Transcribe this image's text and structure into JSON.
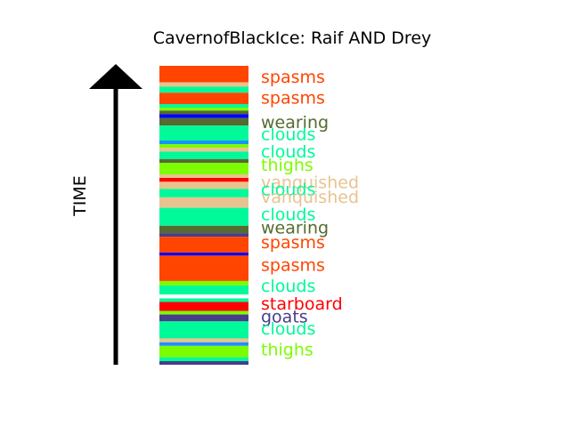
{
  "chart_data": {
    "type": "bar",
    "orientation": "stacked-timeline",
    "title": "CavernofBlackIce: Raif AND Drey",
    "ylabel": "TIME",
    "ylim": [
      0,
      1
    ],
    "grid": false,
    "stripes": [
      {
        "label": "spasms",
        "start": 0.945,
        "end": 1.0,
        "color": "#ff4500"
      },
      {
        "label": "",
        "start": 0.93,
        "end": 0.945,
        "color": "#e9c38f"
      },
      {
        "label": "",
        "start": 0.91,
        "end": 0.93,
        "color": "#00fa9a"
      },
      {
        "label": "spasms",
        "start": 0.872,
        "end": 0.91,
        "color": "#ff4500"
      },
      {
        "label": "",
        "start": 0.86,
        "end": 0.872,
        "color": "#00fa9a"
      },
      {
        "label": "",
        "start": 0.85,
        "end": 0.86,
        "color": "#7cfc00"
      },
      {
        "label": "",
        "start": 0.838,
        "end": 0.85,
        "color": "#556b2f"
      },
      {
        "label": "wearing",
        "start": 0.825,
        "end": 0.838,
        "color": "#0000ff"
      },
      {
        "label": "",
        "start": 0.8,
        "end": 0.825,
        "color": "#556b2f"
      },
      {
        "label": "clouds",
        "start": 0.75,
        "end": 0.8,
        "color": "#00fa9a"
      },
      {
        "label": "",
        "start": 0.738,
        "end": 0.75,
        "color": "#1e90ff"
      },
      {
        "label": "",
        "start": 0.726,
        "end": 0.738,
        "color": "#7cfc00"
      },
      {
        "label": "",
        "start": 0.713,
        "end": 0.726,
        "color": "#e9c38f"
      },
      {
        "label": "clouds",
        "start": 0.688,
        "end": 0.713,
        "color": "#00fa9a"
      },
      {
        "label": "",
        "start": 0.675,
        "end": 0.688,
        "color": "#556b2f"
      },
      {
        "label": "",
        "start": 0.65,
        "end": 0.675,
        "color": "#7cfc00"
      },
      {
        "label": "thighs",
        "start": 0.637,
        "end": 0.65,
        "color": "#7cfc00"
      },
      {
        "label": "",
        "start": 0.625,
        "end": 0.637,
        "color": "#e9c38f"
      },
      {
        "label": "vanquished",
        "start": 0.612,
        "end": 0.625,
        "color": "#ff0000"
      },
      {
        "label": "",
        "start": 0.588,
        "end": 0.612,
        "color": "#e9c38f"
      },
      {
        "label": "clouds",
        "start": 0.56,
        "end": 0.588,
        "color": "#00fa9a"
      },
      {
        "label": "vanquished",
        "start": 0.525,
        "end": 0.56,
        "color": "#e9c38f"
      },
      {
        "label": "clouds",
        "start": 0.465,
        "end": 0.525,
        "color": "#00fa9a"
      },
      {
        "label": "wearing",
        "start": 0.44,
        "end": 0.465,
        "color": "#556b2f"
      },
      {
        "label": "",
        "start": 0.428,
        "end": 0.44,
        "color": "#483d8b"
      },
      {
        "label": "spasms",
        "start": 0.375,
        "end": 0.428,
        "color": "#ff4500"
      },
      {
        "label": "",
        "start": 0.365,
        "end": 0.375,
        "color": "#0000ff"
      },
      {
        "label": "spasms",
        "start": 0.28,
        "end": 0.365,
        "color": "#ff4500"
      },
      {
        "label": "",
        "start": 0.265,
        "end": 0.28,
        "color": "#7cfc00"
      },
      {
        "label": "clouds",
        "start": 0.235,
        "end": 0.265,
        "color": "#00fa9a"
      },
      {
        "label": "",
        "start": 0.222,
        "end": 0.235,
        "color": "#ffffff"
      },
      {
        "label": "",
        "start": 0.21,
        "end": 0.222,
        "color": "#00fa9a"
      },
      {
        "label": "starboard",
        "start": 0.18,
        "end": 0.21,
        "color": "#ff0000"
      },
      {
        "label": "",
        "start": 0.168,
        "end": 0.18,
        "color": "#7cfc00"
      },
      {
        "label": "goats",
        "start": 0.145,
        "end": 0.168,
        "color": "#483d8b"
      },
      {
        "label": "clouds",
        "start": 0.088,
        "end": 0.145,
        "color": "#00fa9a"
      },
      {
        "label": "",
        "start": 0.075,
        "end": 0.088,
        "color": "#e9c38f"
      },
      {
        "label": "",
        "start": 0.063,
        "end": 0.075,
        "color": "#1e90ff"
      },
      {
        "label": "thighs",
        "start": 0.025,
        "end": 0.063,
        "color": "#7cfc00"
      },
      {
        "label": "",
        "start": 0.012,
        "end": 0.025,
        "color": "#00fa9a"
      },
      {
        "label": "",
        "start": 0.0,
        "end": 0.012,
        "color": "#483d8b"
      }
    ],
    "labels": [
      {
        "text": "spasms",
        "y": 0.965,
        "color": "#ff4500"
      },
      {
        "text": "spasms",
        "y": 0.895,
        "color": "#ff4500"
      },
      {
        "text": "wearing",
        "y": 0.812,
        "color": "#556b2f"
      },
      {
        "text": "clouds",
        "y": 0.772,
        "color": "#00fa9a"
      },
      {
        "text": "clouds",
        "y": 0.715,
        "color": "#00fa9a"
      },
      {
        "text": "thighs",
        "y": 0.67,
        "color": "#7cfc00"
      },
      {
        "text": "vanquished",
        "y": 0.612,
        "color": "#e9c38f"
      },
      {
        "text": "clouds",
        "y": 0.588,
        "color": "#00fa9a"
      },
      {
        "text": "vanquished",
        "y": 0.562,
        "color": "#e9c38f"
      },
      {
        "text": "clouds",
        "y": 0.505,
        "color": "#00fa9a"
      },
      {
        "text": "wearing",
        "y": 0.46,
        "color": "#556b2f"
      },
      {
        "text": "spasms",
        "y": 0.41,
        "color": "#ff4500"
      },
      {
        "text": "spasms",
        "y": 0.335,
        "color": "#ff4500"
      },
      {
        "text": "clouds",
        "y": 0.265,
        "color": "#00fa9a"
      },
      {
        "text": "starboard",
        "y": 0.205,
        "color": "#ff0000"
      },
      {
        "text": "goats",
        "y": 0.162,
        "color": "#483d8b"
      },
      {
        "text": "clouds",
        "y": 0.122,
        "color": "#00fa9a"
      },
      {
        "text": "thighs",
        "y": 0.052,
        "color": "#7cfc00"
      }
    ]
  }
}
